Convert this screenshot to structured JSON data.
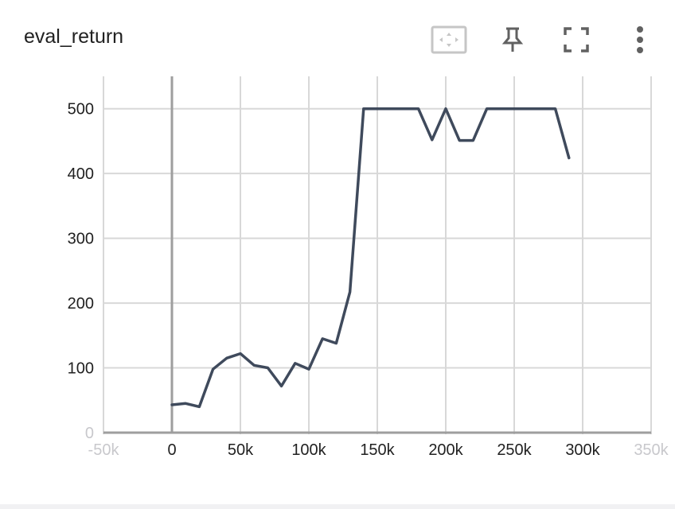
{
  "panel": {
    "title": "eval_return",
    "toolbar": [
      {
        "name": "fit-domain-icon",
        "icon": "fit-to-data-frame"
      },
      {
        "name": "pin-icon",
        "icon": "pushpin"
      },
      {
        "name": "fullscreen-icon",
        "icon": "expand-corners"
      },
      {
        "name": "more-options-icon",
        "icon": "vertical-ellipsis"
      }
    ]
  },
  "colors": {
    "line": "#3f4a5c",
    "grid": "#d8d8d8",
    "axis": "#9e9e9e",
    "text": "#212121",
    "faded_text": "#c8c8cc",
    "button_border": "#c6c6c6"
  },
  "chart_data": {
    "type": "line",
    "title": "eval_return",
    "xlabel": "",
    "ylabel": "",
    "xlim": [
      -50000,
      350000
    ],
    "ylim": [
      0,
      550
    ],
    "grid": true,
    "x_ticks": [
      -50000,
      0,
      50000,
      100000,
      150000,
      200000,
      250000,
      300000,
      350000
    ],
    "x_tick_labels": [
      "-50k",
      "0",
      "50k",
      "100k",
      "150k",
      "200k",
      "250k",
      "300k",
      "350k"
    ],
    "y_ticks": [
      0,
      100,
      200,
      300,
      400,
      500
    ],
    "y_tick_labels": [
      "0",
      "100",
      "200",
      "300",
      "400",
      "500"
    ],
    "series": [
      {
        "x": [
          0,
          10000,
          20000,
          30000,
          40000,
          50000,
          60000,
          70000,
          80000,
          90000,
          100000,
          110000,
          120000,
          130000,
          140000,
          150000,
          160000,
          170000,
          180000,
          190000,
          200000,
          210000,
          220000,
          230000,
          240000,
          250000,
          260000,
          270000,
          280000,
          290000
        ],
        "y": [
          43,
          45,
          40,
          98,
          115,
          122,
          104,
          100,
          72,
          107,
          98,
          145,
          138,
          217,
          500,
          500,
          500,
          500,
          500,
          452,
          500,
          451,
          451,
          500,
          500,
          500,
          500,
          500,
          500,
          424
        ]
      }
    ]
  }
}
